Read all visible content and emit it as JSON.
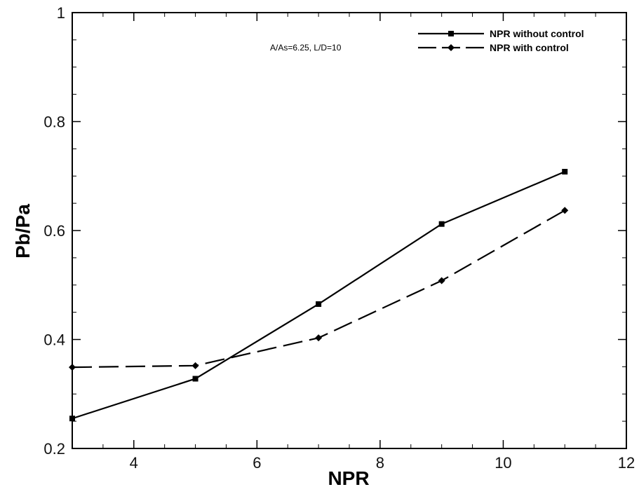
{
  "chart_data": {
    "type": "line",
    "xlabel": "NPR",
    "ylabel": "Pb/Pa",
    "xlim": [
      3,
      12
    ],
    "ylim": [
      0.2,
      1
    ],
    "xticks": [
      4,
      6,
      8,
      10,
      12
    ],
    "xtick_labels": [
      "4",
      "6",
      "8",
      "10",
      "12"
    ],
    "yticks": [
      0.2,
      0.4,
      0.6,
      0.8,
      1
    ],
    "ytick_labels": [
      "0.2",
      "0.4",
      "0.6",
      "0.8",
      "1"
    ],
    "grid": false,
    "legend_position": "top-right",
    "annotation": "A/As=6.25, L/D=10",
    "series": [
      {
        "name": "NPR without control",
        "style": "solid",
        "marker": "square",
        "color": "#000000",
        "x": [
          3,
          5,
          7,
          9,
          11
        ],
        "y": [
          0.255,
          0.328,
          0.465,
          0.612,
          0.708
        ]
      },
      {
        "name": "NPR with control",
        "style": "dashed",
        "marker": "diamond",
        "color": "#000000",
        "x": [
          3,
          5,
          7,
          9,
          11
        ],
        "y": [
          0.349,
          0.352,
          0.403,
          0.508,
          0.637
        ]
      }
    ]
  }
}
